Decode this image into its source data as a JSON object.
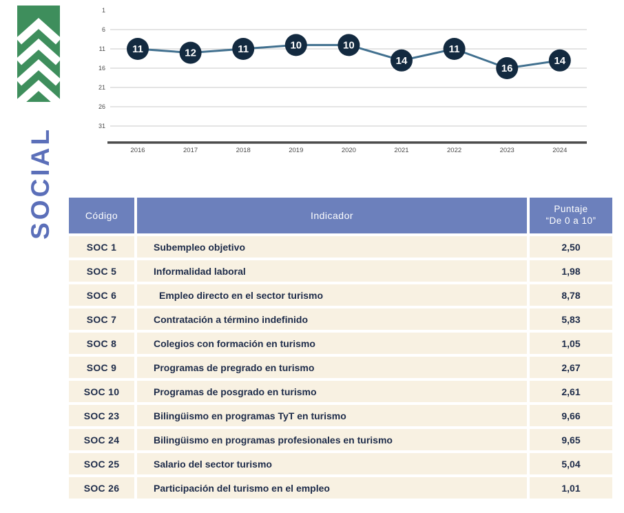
{
  "page": {
    "background": "#ffffff"
  },
  "brand": {
    "logo_icon": "chevrons-up-logo",
    "logo_green": "#3e8e5c",
    "logo_chevron_color": "#ffffff"
  },
  "sidebar": {
    "section_label": "SOCIAL",
    "label_color": "#5b6fb9"
  },
  "chart_data": {
    "type": "line",
    "title": "",
    "xlabel": "",
    "ylabel": "",
    "x": [
      "2016",
      "2017",
      "2018",
      "2019",
      "2020",
      "2021",
      "2022",
      "2023",
      "2024"
    ],
    "values": [
      11,
      12,
      11,
      10,
      10,
      14,
      11,
      16,
      14
    ],
    "point_labels": [
      "11",
      "12",
      "11",
      "10",
      "10",
      "14",
      "11",
      "16",
      "14"
    ],
    "yticks": [
      1,
      6,
      11,
      16,
      21,
      26,
      31
    ],
    "y_axis_inverted": true,
    "ylim": [
      1,
      36
    ],
    "grid": "horizontal",
    "legend_position": "none",
    "line_color": "#41708f",
    "marker_color": "#132a40",
    "marker_text_color": "#ffffff",
    "grid_color": "#c9c9c9",
    "axis_color": "#4d4d4d",
    "tick_label_color": "#4a4a4a"
  },
  "table": {
    "header_bg": "#6c80bc",
    "header_text_color": "#ffffff",
    "row_bg": "#f8f1e2",
    "row_text_color": "#1d2b49",
    "header": {
      "codigo": "Código",
      "indicador": "Indicador",
      "puntaje_line1": "Puntaje",
      "puntaje_line2": "“De 0 a 10”"
    },
    "rows": [
      {
        "codigo": "SOC 1",
        "indicador": "Subempleo objetivo",
        "puntaje": "2,50",
        "indent": false
      },
      {
        "codigo": "SOC 5",
        "indicador": "Informalidad laboral",
        "puntaje": "1,98",
        "indent": false
      },
      {
        "codigo": "SOC 6",
        "indicador": "Empleo directo en el sector turismo",
        "puntaje": "8,78",
        "indent": true
      },
      {
        "codigo": "SOC 7",
        "indicador": "Contratación a término indefinido",
        "puntaje": "5,83",
        "indent": false
      },
      {
        "codigo": "SOC 8",
        "indicador": "Colegios con formación en turismo",
        "puntaje": "1,05",
        "indent": false
      },
      {
        "codigo": "SOC 9",
        "indicador": "Programas de pregrado en turismo",
        "puntaje": "2,67",
        "indent": false
      },
      {
        "codigo": "SOC 10",
        "indicador": "Programas de posgrado en turismo",
        "puntaje": "2,61",
        "indent": false
      },
      {
        "codigo": "SOC 23",
        "indicador": "Bilingüismo en programas TyT en turismo",
        "puntaje": "9,66",
        "indent": false
      },
      {
        "codigo": "SOC 24",
        "indicador": "Bilingüismo en programas profesionales en turismo",
        "puntaje": "9,65",
        "indent": false
      },
      {
        "codigo": "SOC 25",
        "indicador": "Salario del sector turismo",
        "puntaje": "5,04",
        "indent": false
      },
      {
        "codigo": "SOC 26",
        "indicador": "Participación del turismo en el empleo",
        "puntaje": "1,01",
        "indent": false
      }
    ]
  }
}
